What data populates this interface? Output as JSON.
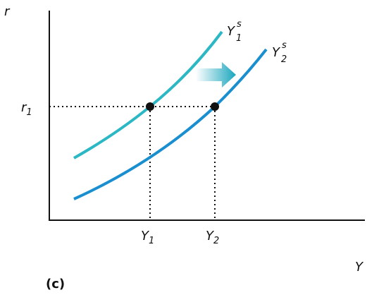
{
  "axes": {
    "y": "r",
    "x": "Y"
  },
  "curves": [
    {
      "base": "Y",
      "sub": "1",
      "sup": "s"
    },
    {
      "base": "Y",
      "sub": "2",
      "sup": "s"
    }
  ],
  "levels": {
    "r1": {
      "base": "r",
      "sub": "1"
    },
    "Y1": {
      "base": "Y",
      "sub": "1"
    },
    "Y2": {
      "base": "Y",
      "sub": "2"
    }
  },
  "caption": "(c)"
}
